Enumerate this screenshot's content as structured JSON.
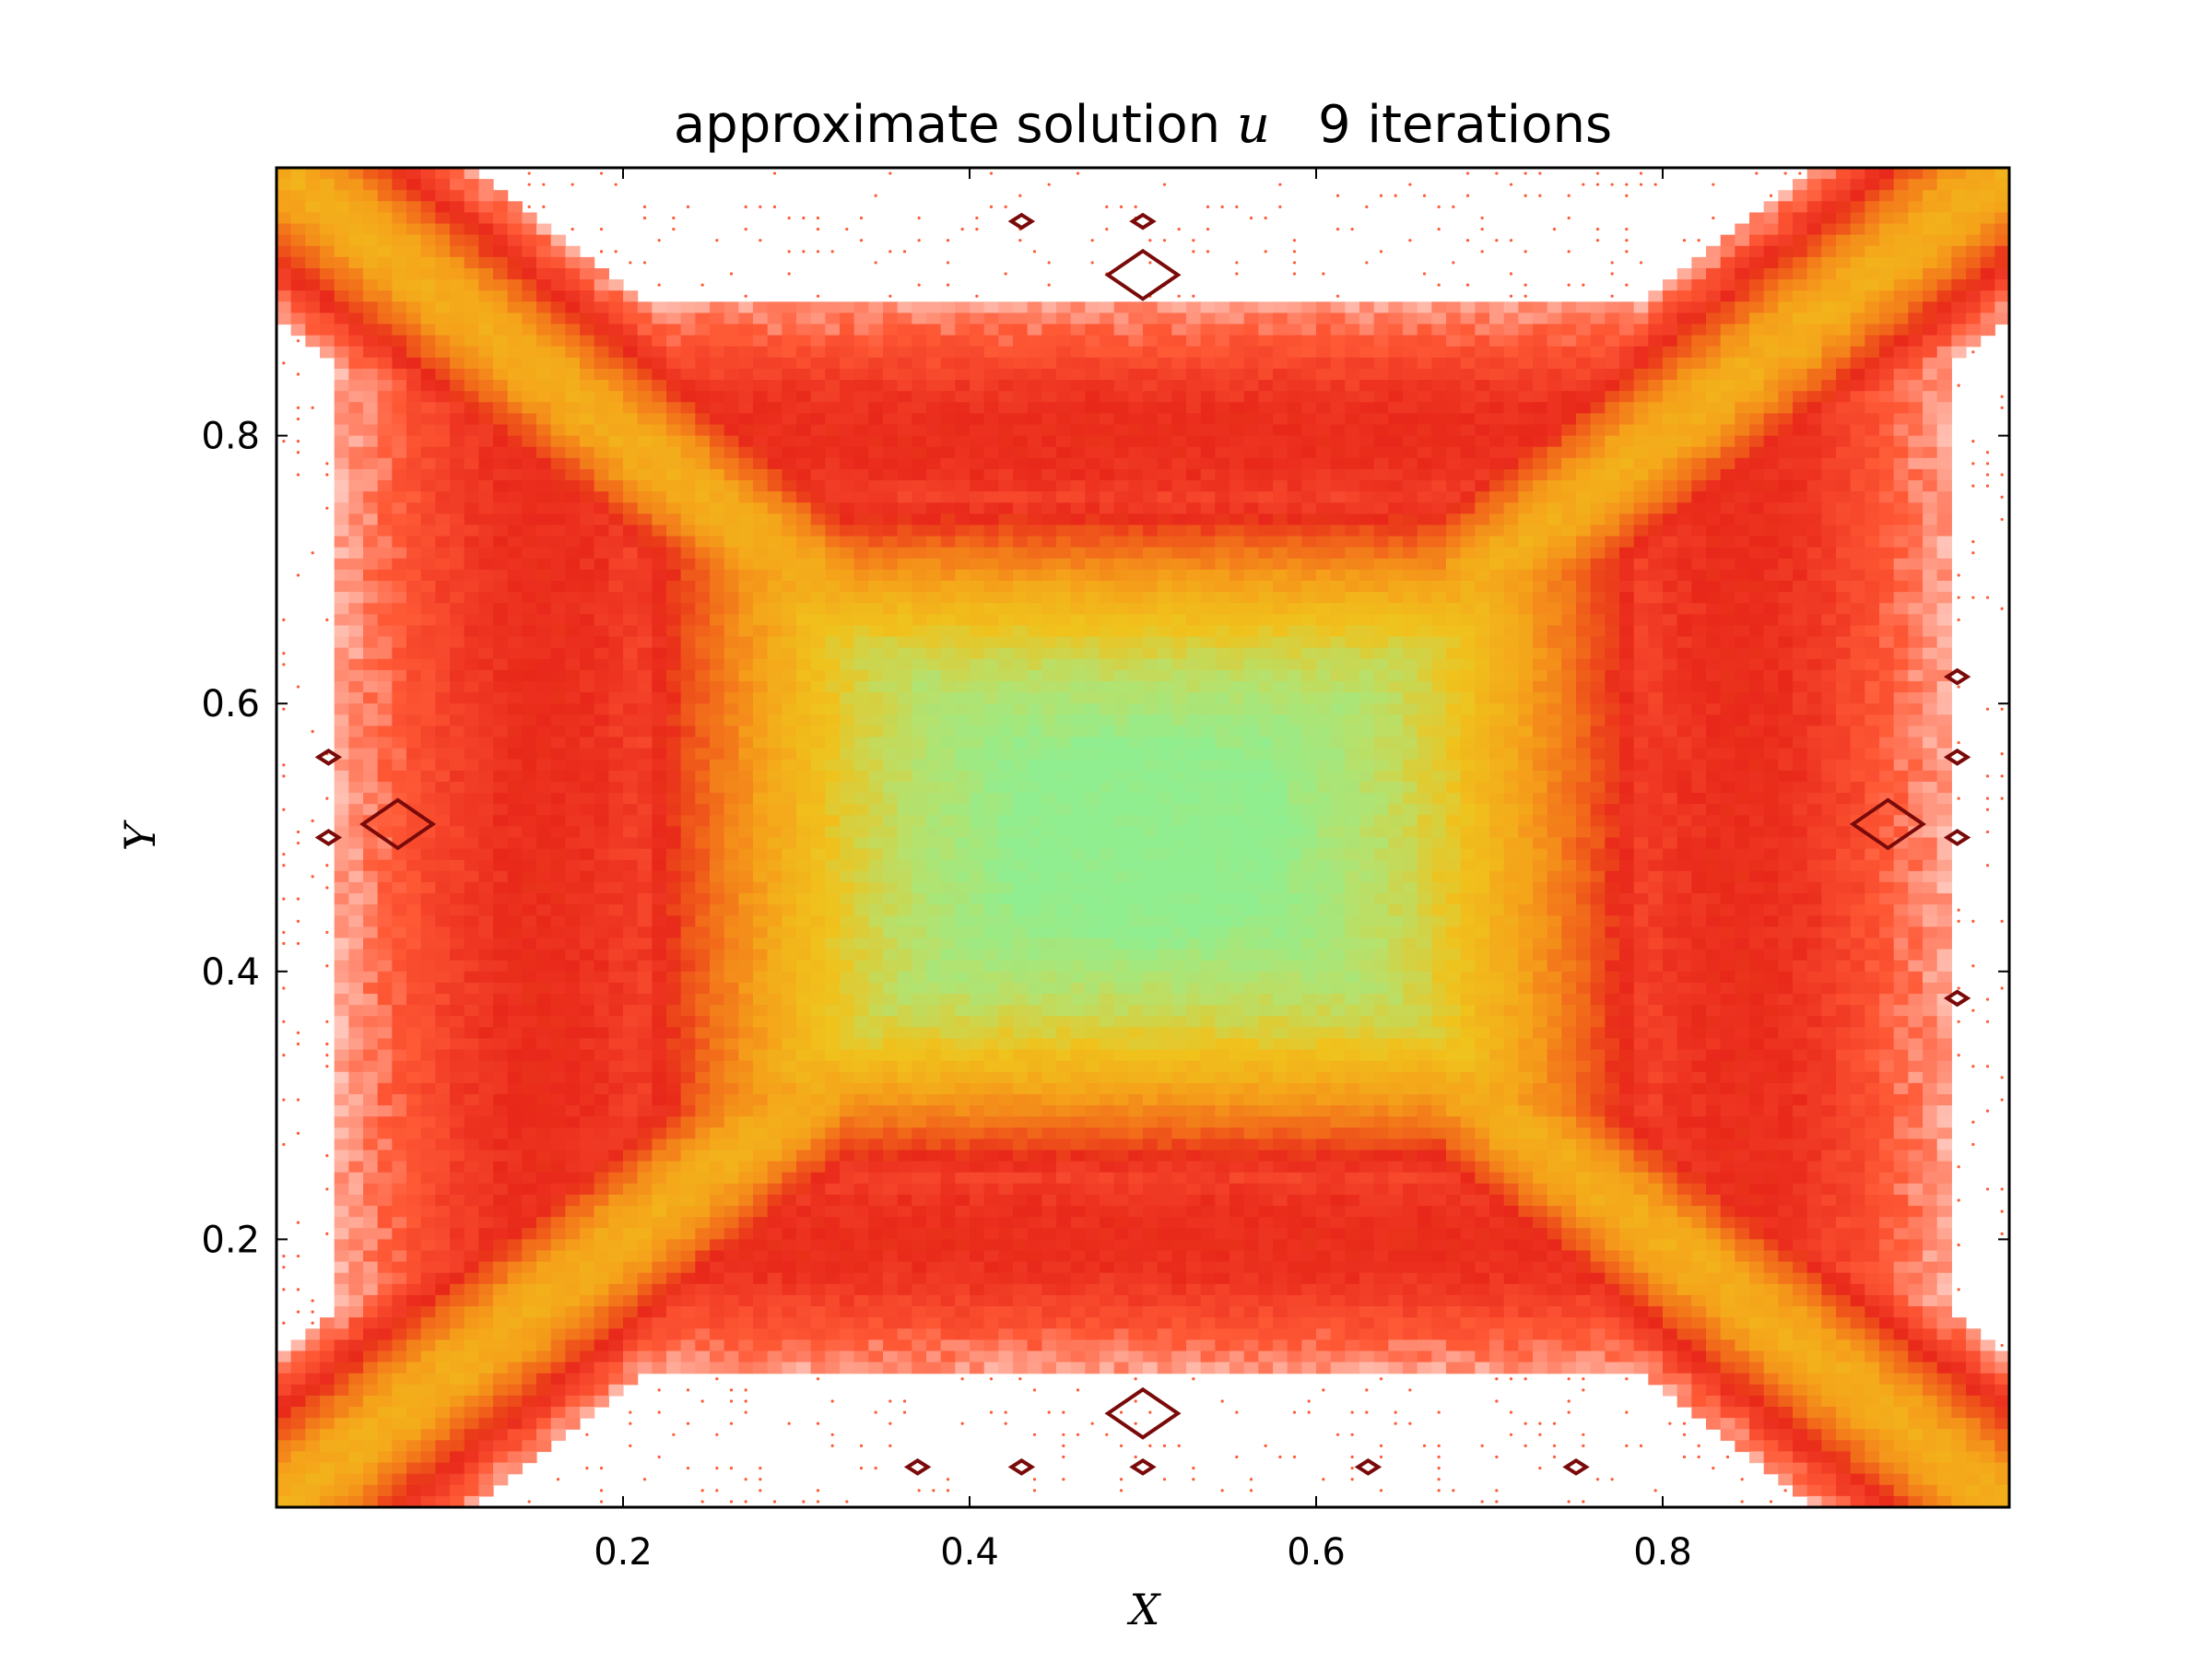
{
  "chart_data": {
    "type": "heatmap",
    "title": {
      "prefix": "approximate solution ",
      "variable": "u",
      "suffix": "9 iterations"
    },
    "xlabel": "X",
    "ylabel": "Y",
    "xlim": [
      0.0,
      1.0
    ],
    "ylim": [
      0.0,
      1.0
    ],
    "xticks": [
      {
        "value": 0.2,
        "label": "0.2"
      },
      {
        "value": 0.4,
        "label": "0.4"
      },
      {
        "value": 0.6,
        "label": "0.6"
      },
      {
        "value": 0.8,
        "label": "0.8"
      }
    ],
    "yticks": [
      {
        "value": 0.2,
        "label": "0.2"
      },
      {
        "value": 0.4,
        "label": "0.4"
      },
      {
        "value": 0.6,
        "label": "0.6"
      },
      {
        "value": 0.8,
        "label": "0.8"
      }
    ],
    "grid": false,
    "legend": "none",
    "field": {
      "description_of_plot": "contour-line field of u on unit square",
      "center": [
        0.5,
        0.5
      ],
      "max_value_region": [
        0.5,
        0.5
      ],
      "diagonal_ridges": true,
      "colormap": [
        "#ffffff",
        "#ff5a36",
        "#e8281a",
        "#f26c1a",
        "#f5a21a",
        "#f0c21c",
        "#b8e06a",
        "#90ee90"
      ]
    },
    "dark_contours": [
      {
        "x": 0.43,
        "y": 0.96
      },
      {
        "x": 0.5,
        "y": 0.96
      },
      {
        "x": 0.5,
        "y": 0.92
      },
      {
        "x": 0.03,
        "y": 0.56
      },
      {
        "x": 0.03,
        "y": 0.5
      },
      {
        "x": 0.07,
        "y": 0.51
      },
      {
        "x": 0.93,
        "y": 0.51
      },
      {
        "x": 0.97,
        "y": 0.62
      },
      {
        "x": 0.97,
        "y": 0.56
      },
      {
        "x": 0.97,
        "y": 0.5
      },
      {
        "x": 0.97,
        "y": 0.38
      },
      {
        "x": 0.5,
        "y": 0.07
      },
      {
        "x": 0.37,
        "y": 0.03
      },
      {
        "x": 0.43,
        "y": 0.03
      },
      {
        "x": 0.5,
        "y": 0.03
      },
      {
        "x": 0.63,
        "y": 0.03
      },
      {
        "x": 0.75,
        "y": 0.03
      }
    ]
  }
}
